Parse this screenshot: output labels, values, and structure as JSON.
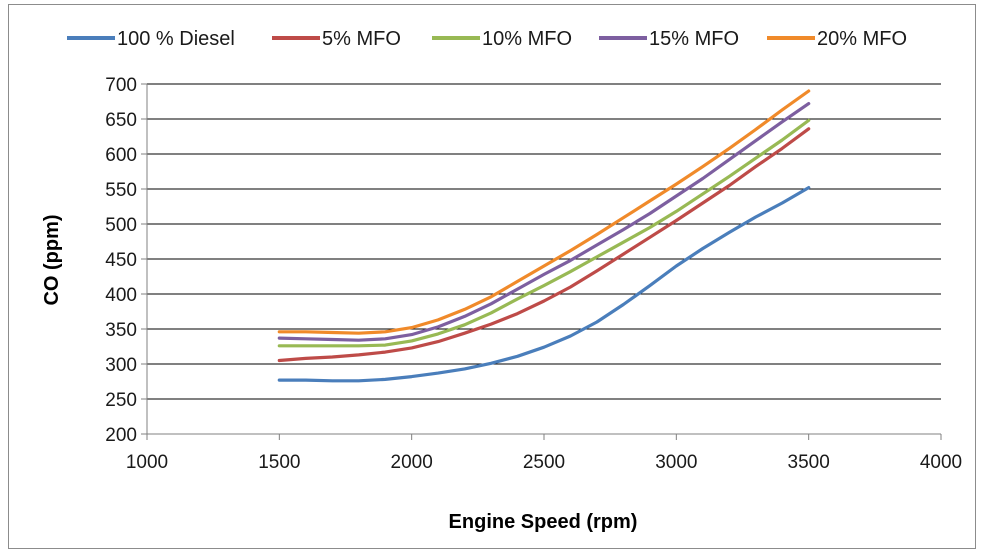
{
  "chart_data": {
    "type": "line",
    "title": "",
    "xlabel": "Engine Speed (rpm)",
    "ylabel": "CO (ppm)",
    "xlim": [
      1000,
      4000
    ],
    "ylim": [
      200,
      700
    ],
    "xticks": [
      1000,
      1500,
      2000,
      2500,
      3000,
      3500,
      4000
    ],
    "yticks": [
      200,
      250,
      300,
      350,
      400,
      450,
      500,
      550,
      600,
      650,
      700
    ],
    "grid": "horizontal",
    "legend_position": "top",
    "series": [
      {
        "name": "100 % Diesel",
        "color": "#4a7ebb",
        "x": [
          1500,
          1600,
          1700,
          1800,
          1900,
          2000,
          2100,
          2200,
          2300,
          2400,
          2500,
          2600,
          2700,
          2800,
          2900,
          3000,
          3100,
          3200,
          3300,
          3400,
          3500
        ],
        "y": [
          277,
          277,
          276,
          276,
          278,
          282,
          287,
          293,
          301,
          311,
          324,
          340,
          360,
          385,
          412,
          440,
          465,
          488,
          510,
          530,
          552
        ]
      },
      {
        "name": "5% MFO",
        "color": "#be4b48",
        "x": [
          1500,
          1600,
          1700,
          1800,
          1900,
          2000,
          2100,
          2200,
          2300,
          2400,
          2500,
          2600,
          2700,
          2800,
          2900,
          3000,
          3100,
          3200,
          3300,
          3400,
          3500
        ],
        "y": [
          305,
          308,
          310,
          313,
          317,
          323,
          332,
          344,
          357,
          372,
          390,
          410,
          433,
          457,
          481,
          505,
          530,
          555,
          582,
          608,
          636
        ]
      },
      {
        "name": "10% MFO",
        "color": "#98b954",
        "x": [
          1500,
          1600,
          1700,
          1800,
          1900,
          2000,
          2100,
          2200,
          2300,
          2400,
          2500,
          2600,
          2700,
          2800,
          2900,
          3000,
          3100,
          3200,
          3300,
          3400,
          3500
        ],
        "y": [
          326,
          326,
          326,
          326,
          327,
          333,
          343,
          356,
          373,
          393,
          412,
          432,
          453,
          474,
          495,
          518,
          543,
          568,
          594,
          620,
          648
        ]
      },
      {
        "name": "15% MFO",
        "color": "#7d5fa0",
        "x": [
          1500,
          1600,
          1700,
          1800,
          1900,
          2000,
          2100,
          2200,
          2300,
          2400,
          2500,
          2600,
          2700,
          2800,
          2900,
          3000,
          3100,
          3200,
          3300,
          3400,
          3500
        ],
        "y": [
          337,
          336,
          335,
          334,
          336,
          342,
          353,
          368,
          386,
          407,
          428,
          448,
          470,
          492,
          515,
          540,
          565,
          592,
          619,
          646,
          672
        ]
      },
      {
        "name": "20% MFO",
        "color": "#f08a2a",
        "x": [
          1500,
          1600,
          1700,
          1800,
          1900,
          2000,
          2100,
          2200,
          2300,
          2400,
          2500,
          2600,
          2700,
          2800,
          2900,
          3000,
          3100,
          3200,
          3300,
          3400,
          3500
        ],
        "y": [
          346,
          346,
          345,
          344,
          346,
          352,
          363,
          378,
          396,
          418,
          440,
          462,
          485,
          509,
          533,
          557,
          582,
          608,
          635,
          663,
          690
        ]
      }
    ]
  }
}
